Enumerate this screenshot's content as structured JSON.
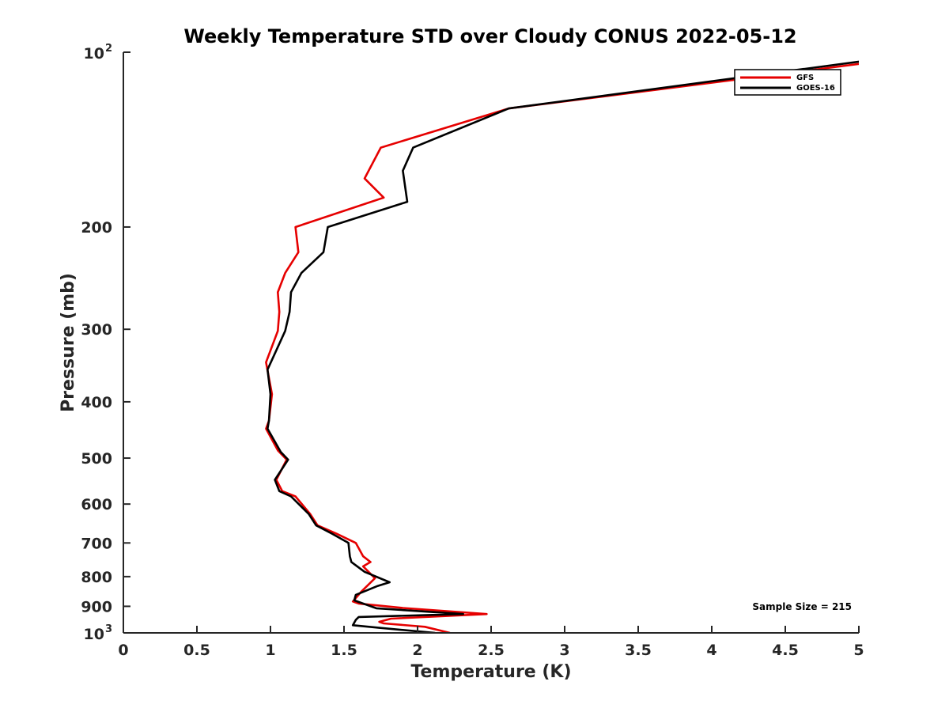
{
  "chart_data": {
    "type": "line",
    "title": "Weekly Temperature STD over Cloudy CONUS 2022-05-12",
    "xlabel": "Temperature (K)",
    "ylabel": "Pressure (mb)",
    "xlim": [
      0,
      5
    ],
    "ylim": [
      100,
      1000
    ],
    "y_scale": "log",
    "y_reversed": true,
    "grid": false,
    "legend_position": "top-right",
    "x_ticks": [
      "0",
      "0.5",
      "1",
      "1.5",
      "2",
      "2.5",
      "3",
      "3.5",
      "4",
      "4.5",
      "5"
    ],
    "y_ticks": [
      {
        "value": 100,
        "base": "10",
        "exp": "2"
      },
      {
        "value": 200,
        "label": "200"
      },
      {
        "value": 300,
        "label": "300"
      },
      {
        "value": 400,
        "label": "400"
      },
      {
        "value": 500,
        "label": "500"
      },
      {
        "value": 600,
        "label": "600"
      },
      {
        "value": 700,
        "label": "700"
      },
      {
        "value": 800,
        "label": "800"
      },
      {
        "value": 900,
        "label": "900"
      },
      {
        "value": 1000,
        "base": "10",
        "exp": "3"
      }
    ],
    "annotation": "Sample Size = 215",
    "series": [
      {
        "name": "GFS",
        "color": "#e60000",
        "points": [
          [
            5.1,
            104
          ],
          [
            2.62,
            125
          ],
          [
            1.75,
            146
          ],
          [
            1.64,
            165
          ],
          [
            1.77,
            178
          ],
          [
            1.17,
            200
          ],
          [
            1.19,
            221
          ],
          [
            1.1,
            240
          ],
          [
            1.05,
            259
          ],
          [
            1.06,
            280
          ],
          [
            1.05,
            302
          ],
          [
            0.97,
            342
          ],
          [
            1.01,
            388
          ],
          [
            0.99,
            431
          ],
          [
            0.97,
            445
          ],
          [
            1.05,
            485
          ],
          [
            1.11,
            503
          ],
          [
            1.04,
            545
          ],
          [
            1.08,
            570
          ],
          [
            1.17,
            582
          ],
          [
            1.27,
            624
          ],
          [
            1.32,
            653
          ],
          [
            1.45,
            675
          ],
          [
            1.58,
            700
          ],
          [
            1.63,
            738
          ],
          [
            1.68,
            755
          ],
          [
            1.63,
            768
          ],
          [
            1.71,
            805
          ],
          [
            1.62,
            848
          ],
          [
            1.56,
            883
          ],
          [
            1.6,
            890
          ],
          [
            1.9,
            906
          ],
          [
            2.47,
            928
          ],
          [
            1.82,
            945
          ],
          [
            1.74,
            957
          ],
          [
            1.77,
            963
          ],
          [
            2.05,
            976
          ],
          [
            2.22,
            1000
          ]
        ]
      },
      {
        "name": "GOES-16",
        "color": "#000000",
        "points": [
          [
            5.1,
            103
          ],
          [
            2.62,
            125
          ],
          [
            1.97,
            146
          ],
          [
            1.9,
            160
          ],
          [
            1.93,
            181
          ],
          [
            1.39,
            200
          ],
          [
            1.36,
            221
          ],
          [
            1.21,
            240
          ],
          [
            1.14,
            259
          ],
          [
            1.13,
            280
          ],
          [
            1.1,
            302
          ],
          [
            0.98,
            352
          ],
          [
            1.0,
            388
          ],
          [
            0.99,
            431
          ],
          [
            0.98,
            445
          ],
          [
            1.07,
            488
          ],
          [
            1.12,
            503
          ],
          [
            1.03,
            545
          ],
          [
            1.06,
            570
          ],
          [
            1.14,
            582
          ],
          [
            1.26,
            624
          ],
          [
            1.31,
            653
          ],
          [
            1.42,
            675
          ],
          [
            1.53,
            700
          ],
          [
            1.54,
            738
          ],
          [
            1.55,
            755
          ],
          [
            1.64,
            785
          ],
          [
            1.81,
            818
          ],
          [
            1.73,
            830
          ],
          [
            1.58,
            860
          ],
          [
            1.57,
            879
          ],
          [
            1.72,
            907
          ],
          [
            2.31,
            928
          ],
          [
            1.6,
            939
          ],
          [
            1.58,
            950
          ],
          [
            1.56,
            970
          ],
          [
            1.74,
            980
          ],
          [
            2.12,
            1000
          ]
        ]
      }
    ]
  }
}
